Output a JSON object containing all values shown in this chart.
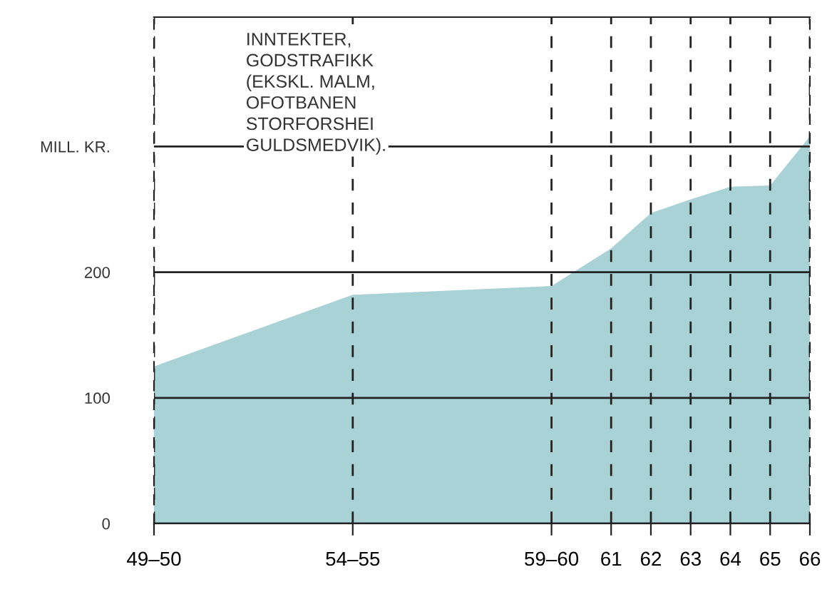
{
  "chart_data": {
    "type": "area",
    "x": [
      49.5,
      54.5,
      59.5,
      61,
      62,
      63,
      64,
      65,
      66
    ],
    "series": [
      {
        "color": "#a9d2d6",
        "values": [
          125,
          182,
          189,
          219,
          247,
          258,
          268,
          269,
          308
        ]
      }
    ],
    "xlim": [
      49.5,
      66
    ],
    "xticks": [
      {
        "value": 49.5,
        "label": "49–50"
      },
      {
        "value": 54.5,
        "label": "54–55"
      },
      {
        "value": 59.5,
        "label": "59–60"
      },
      {
        "value": 61,
        "label": "61"
      },
      {
        "value": 62,
        "label": "62"
      },
      {
        "value": 63,
        "label": "63"
      },
      {
        "value": 64,
        "label": "64"
      },
      {
        "value": 65,
        "label": "65"
      },
      {
        "value": 66,
        "label": "66"
      }
    ],
    "ylim": [
      0,
      403
    ],
    "yticks": [
      0,
      100,
      200,
      {
        "value": 300,
        "label": "MILL. KR."
      }
    ],
    "grid": true,
    "annotations": [
      "INNTEKTER,\nGODSTRAFIKK\n(EKSKL. MALM,\nOFOTBANEN\nSTORFORSHEI\nGULDSMEDVIK)."
    ]
  }
}
